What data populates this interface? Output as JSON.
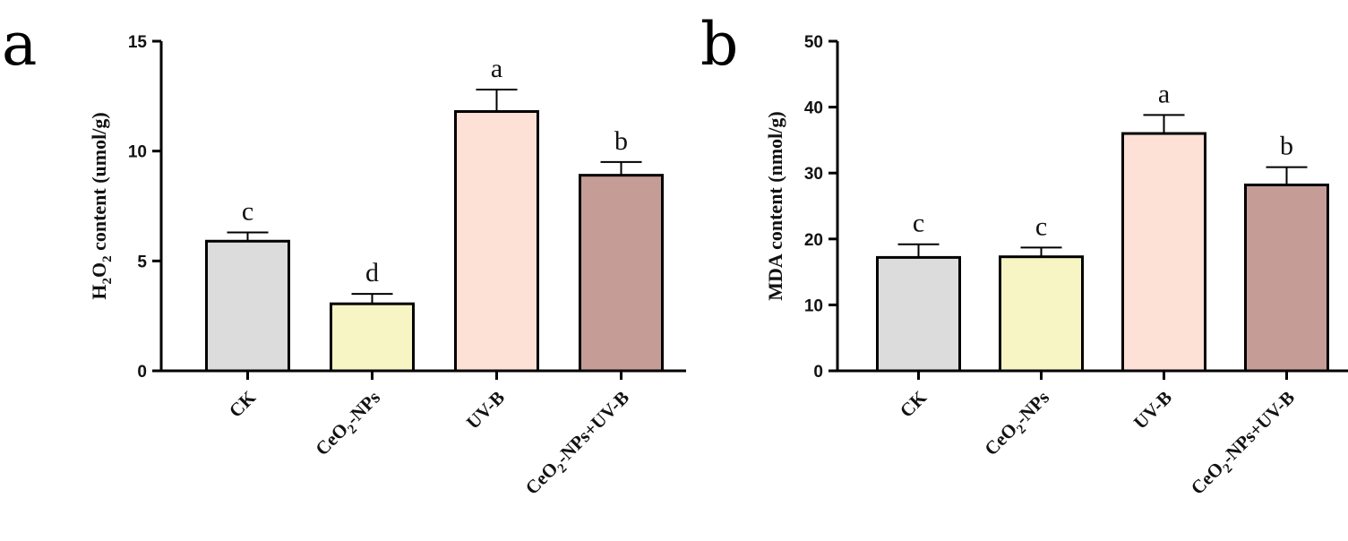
{
  "figure": {
    "panel_letters": [
      "a",
      "b"
    ]
  },
  "chart_data": [
    {
      "type": "bar",
      "panel": "a",
      "title": "",
      "xlabel": "",
      "ylabel": {
        "prefix": "H",
        "sub1": "2",
        "mid": "O",
        "sub2": "2",
        "suffix": " content (umol/g)"
      },
      "ylim": [
        0,
        15
      ],
      "yticks": [
        0,
        5,
        10,
        15
      ],
      "categories": [
        {
          "main": "CK",
          "sub": "",
          "rest": ""
        },
        {
          "main": "CeO",
          "sub": "2",
          "rest": "-NPs"
        },
        {
          "main": "UV-B",
          "sub": "",
          "rest": ""
        },
        {
          "main": "CeO",
          "sub": "2",
          "rest": "-NPs+UV-B"
        }
      ],
      "values": [
        5.9,
        3.05,
        11.8,
        8.9
      ],
      "errors": [
        0.4,
        0.45,
        1.0,
        0.6
      ],
      "significance": [
        "c",
        "d",
        "a",
        "b"
      ],
      "colors": [
        "#dcdcdc",
        "#f8f5c4",
        "#fde0d6",
        "#c69c97"
      ]
    },
    {
      "type": "bar",
      "panel": "b",
      "title": "",
      "xlabel": "",
      "ylabel": {
        "prefix": "MDA content (nmol/g)",
        "sub1": "",
        "mid": "",
        "sub2": "",
        "suffix": ""
      },
      "ylim": [
        0,
        50
      ],
      "yticks": [
        0,
        10,
        20,
        30,
        40,
        50
      ],
      "categories": [
        {
          "main": "CK",
          "sub": "",
          "rest": ""
        },
        {
          "main": "CeO",
          "sub": "2",
          "rest": "-NPs"
        },
        {
          "main": "UV-B",
          "sub": "",
          "rest": ""
        },
        {
          "main": "CeO",
          "sub": "2",
          "rest": "-NPs+UV-B"
        }
      ],
      "values": [
        17.2,
        17.3,
        36.0,
        28.2
      ],
      "errors": [
        2.0,
        1.4,
        2.8,
        2.7
      ],
      "significance": [
        "c",
        "c",
        "a",
        "b"
      ],
      "colors": [
        "#dcdcdc",
        "#f8f5c4",
        "#fde0d6",
        "#c69c97"
      ]
    }
  ]
}
